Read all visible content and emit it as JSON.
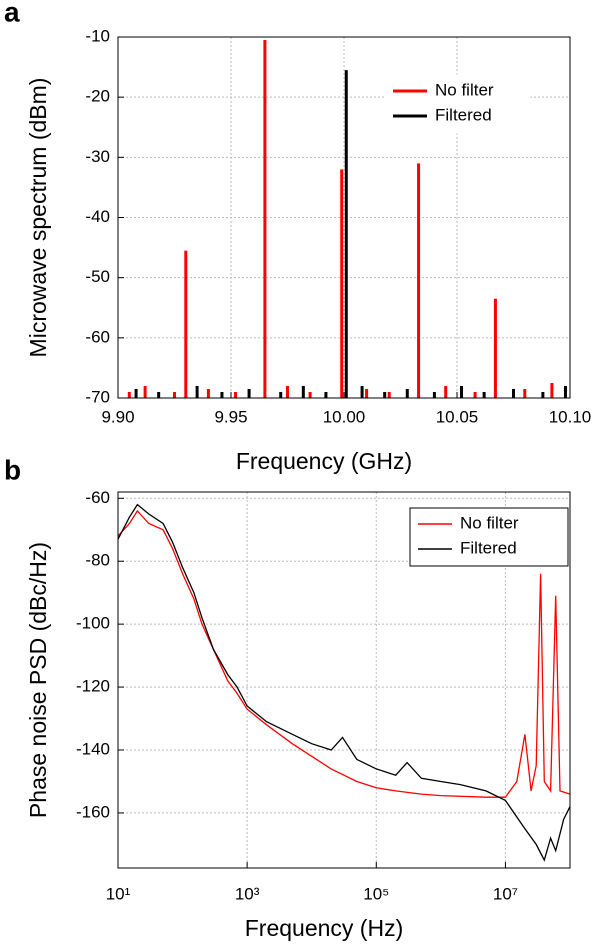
{
  "chart_data": [
    {
      "type": "stem",
      "panel": "a",
      "x_label": "Frequency (GHz)",
      "y_label": "Microwave spectrum (dBm)",
      "xlim": [
        9.9,
        10.1
      ],
      "ylim": [
        -70,
        -10
      ],
      "xticks": [
        {
          "value": 9.9,
          "label": "9.90"
        },
        {
          "value": 9.95,
          "label": "9.95"
        },
        {
          "value": 10.0,
          "label": "10.00"
        },
        {
          "value": 10.05,
          "label": "10.05"
        },
        {
          "value": 10.1,
          "label": "10.10"
        }
      ],
      "yticks": [
        -70,
        -60,
        -50,
        -40,
        -30,
        -20,
        -10
      ],
      "grid": true,
      "legend": "upper right",
      "series": [
        {
          "name": "No filter",
          "color": "#ff0000",
          "x": [
            9.905,
            9.912,
            9.925,
            9.93,
            9.94,
            9.952,
            9.965,
            9.975,
            9.985,
            9.999,
            10.01,
            10.02,
            10.033,
            10.045,
            10.058,
            10.067,
            10.08,
            10.092
          ],
          "values": [
            -69,
            -68,
            -69,
            -45.5,
            -68.5,
            -69,
            -10.5,
            -68,
            -69,
            -32,
            -68.5,
            -69,
            -31,
            -68,
            -69,
            -53.5,
            -68.5,
            -67.5
          ]
        },
        {
          "name": "Filtered",
          "color": "#000000",
          "x": [
            9.908,
            9.918,
            9.935,
            9.946,
            9.958,
            9.972,
            9.982,
            9.992,
            10.001,
            10.008,
            10.018,
            10.028,
            10.04,
            10.052,
            10.062,
            10.075,
            10.088,
            10.098
          ],
          "values": [
            -68.5,
            -69,
            -68,
            -69,
            -68.5,
            -69,
            -68,
            -69,
            -15.5,
            -68,
            -69,
            -68.5,
            -69,
            -68,
            -69,
            -68.5,
            -69,
            -68
          ]
        }
      ]
    },
    {
      "type": "line",
      "panel": "b",
      "x_label": "Frequency (Hz)",
      "y_label": "Phase noise PSD (dBc/Hz)",
      "xscale": "log",
      "xlim": [
        10,
        100000000
      ],
      "ylim": [
        -177.5,
        -58
      ],
      "xticks": [
        {
          "value": 10,
          "label": "10¹"
        },
        {
          "value": 1000,
          "label": "10³"
        },
        {
          "value": 100000,
          "label": "10⁵"
        },
        {
          "value": 10000000,
          "label": "10⁷"
        }
      ],
      "yticks": [
        -160,
        -140,
        -120,
        -100,
        -80,
        -60
      ],
      "grid": true,
      "legend": "upper right",
      "series": [
        {
          "name": "No filter",
          "color": "#ff0000",
          "x": [
            10,
            15,
            20,
            30,
            50,
            70,
            100,
            150,
            200,
            300,
            500,
            700,
            1000,
            2000,
            5000,
            10000,
            20000,
            50000,
            100000,
            200000,
            500000,
            1000000,
            5000000,
            10000000,
            15000000,
            20000000,
            25000000,
            30000000,
            35000000,
            40000000,
            50000000,
            60000000,
            70000000,
            100000000
          ],
          "values": [
            -72,
            -68,
            -64,
            -68,
            -70,
            -76,
            -84,
            -92,
            -100,
            -108,
            -118,
            -122,
            -127,
            -132,
            -138,
            -142,
            -146,
            -150,
            -152,
            -153,
            -154,
            -154.5,
            -155,
            -155,
            -150,
            -135,
            -153,
            -145,
            -84,
            -150,
            -153,
            -91,
            -153,
            -154
          ]
        },
        {
          "name": "Filtered",
          "color": "#000000",
          "x": [
            10,
            15,
            20,
            30,
            50,
            70,
            100,
            150,
            200,
            300,
            500,
            700,
            1000,
            2000,
            5000,
            10000,
            20000,
            30000,
            50000,
            100000,
            200000,
            300000,
            500000,
            1000000,
            2000000,
            5000000,
            10000000,
            20000000,
            30000000,
            40000000,
            50000000,
            60000000,
            80000000,
            100000000
          ],
          "values": [
            -73,
            -66,
            -62,
            -65,
            -68,
            -74,
            -82,
            -90,
            -98,
            -108,
            -116,
            -120,
            -126,
            -131,
            -135,
            -138,
            -140,
            -136,
            -143,
            -146,
            -148,
            -144,
            -149,
            -150,
            -151,
            -153,
            -156,
            -165,
            -170,
            -175,
            -168,
            -172,
            -162,
            -158
          ]
        }
      ]
    }
  ]
}
